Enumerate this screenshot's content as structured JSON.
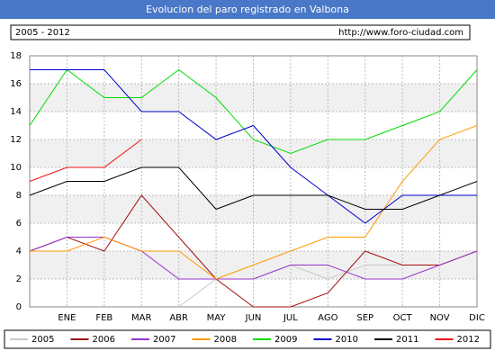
{
  "chart_data": {
    "type": "line",
    "title": "Evolucion del paro registrado en Valbona",
    "subtitle": "2005 - 2012",
    "source": "http://www.foro-ciudad.com",
    "categories": [
      null,
      "ENE",
      "FEB",
      "MAR",
      "ABR",
      "MAY",
      "JUN",
      "JUL",
      "AGO",
      "SEP",
      "OCT",
      "NOV",
      "DIC"
    ],
    "ylim": [
      0,
      18
    ],
    "yticks": [
      0,
      2,
      4,
      6,
      8,
      10,
      12,
      14,
      16,
      18
    ],
    "grid": true,
    "legend": "bottom",
    "series": [
      {
        "name": "2005",
        "color": "#c8c8c8",
        "values": [
          null,
          null,
          null,
          null,
          0,
          2,
          2,
          3,
          2,
          3,
          3,
          3,
          4
        ]
      },
      {
        "name": "2006",
        "color": "#a01010",
        "values": [
          4,
          5,
          4,
          8,
          5,
          2,
          0,
          0,
          1,
          4,
          3,
          3,
          4
        ]
      },
      {
        "name": "2007",
        "color": "#9933cc",
        "values": [
          4,
          5,
          5,
          4,
          2,
          2,
          2,
          3,
          3,
          2,
          2,
          3,
          4
        ]
      },
      {
        "name": "2008",
        "color": "#ff9900",
        "values": [
          4,
          4,
          5,
          4,
          4,
          2,
          3,
          4,
          5,
          5,
          9,
          12,
          13
        ]
      },
      {
        "name": "2009",
        "color": "#00dd00",
        "values": [
          13,
          17,
          15,
          15,
          17,
          15,
          12,
          11,
          12,
          12,
          13,
          14,
          17
        ]
      },
      {
        "name": "2010",
        "color": "#0000cc",
        "values": [
          17,
          17,
          17,
          14,
          14,
          12,
          13,
          10,
          8,
          6,
          8,
          8,
          8
        ]
      },
      {
        "name": "2011",
        "color": "#000000",
        "values": [
          8,
          9,
          9,
          10,
          10,
          7,
          8,
          8,
          8,
          7,
          7,
          8,
          9
        ]
      },
      {
        "name": "2012",
        "color": "#ee1111",
        "values": [
          9,
          10,
          10,
          12,
          null,
          null,
          null,
          null,
          null,
          null,
          null,
          null,
          null
        ]
      }
    ]
  }
}
